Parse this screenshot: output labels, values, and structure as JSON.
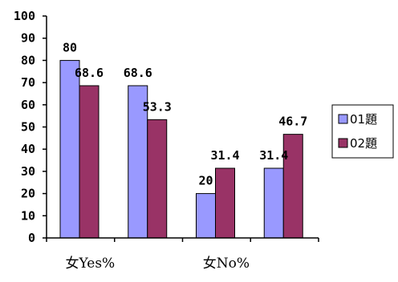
{
  "chart_data": {
    "type": "bar",
    "categories": [
      "女Yes%",
      "",
      "女No%",
      ""
    ],
    "series": [
      {
        "name": "01題",
        "values": [
          80,
          68.6,
          20,
          31.4
        ],
        "color": "#9999ff"
      },
      {
        "name": "02題",
        "values": [
          68.6,
          53.3,
          31.4,
          46.7
        ],
        "color": "#993366"
      }
    ],
    "ylim": [
      0,
      100
    ],
    "yticks": [
      0,
      10,
      20,
      30,
      40,
      50,
      60,
      70,
      80,
      90,
      100
    ],
    "grid": false,
    "legend_position": "right"
  }
}
